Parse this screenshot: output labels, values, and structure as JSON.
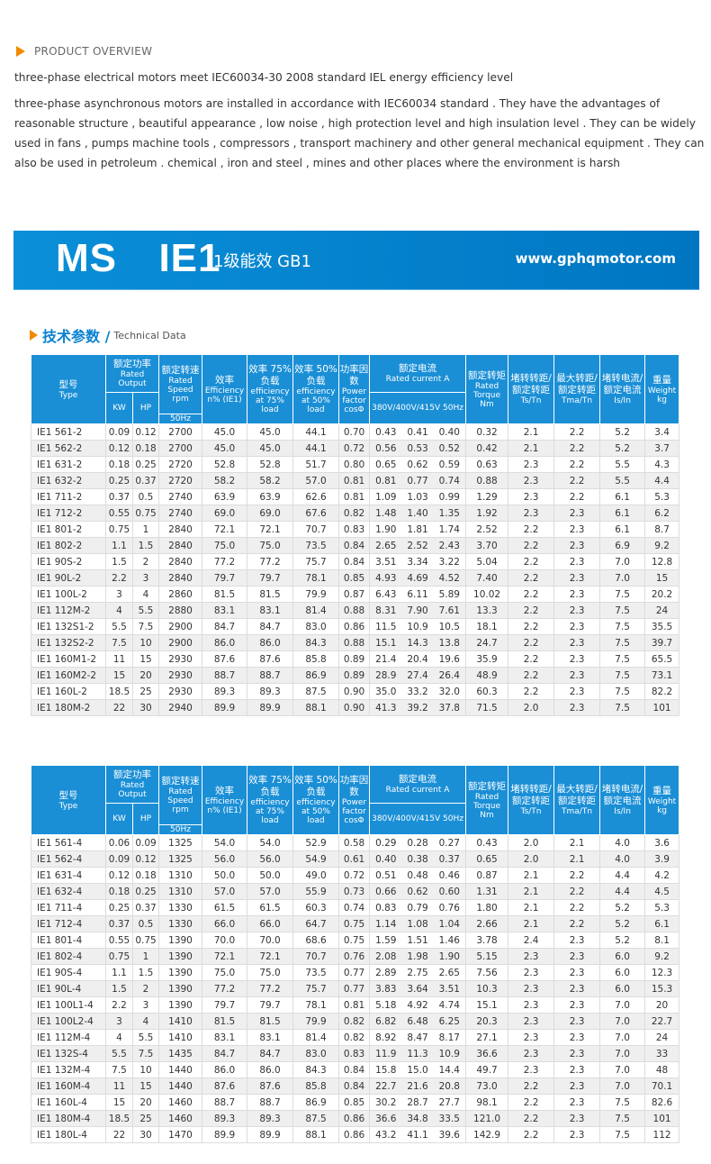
{
  "overview": {
    "title": "PRODUCT OVERVIEW",
    "line1": "three-phase electrical motors meet IEC60034-30 2008 standard IEL energy efficiency level",
    "paragraph": "three-phase asynchronous motors are installed in accordance with IEC60034 standard . They have the advantages of reasonable structure , beautiful appearance , low noise , high protection level and high insulation level . They can be widely used in fans , pumps machine tools , compressors , transport machinery and other general mechanical equipment . They can also be used in petroleum . chemical , iron and steel , mines and other places where the environment is harsh"
  },
  "banner": {
    "title": "MS  IE1",
    "subtitle": "1级能效 GB1",
    "url": "www.gphqmotor.com",
    "color": "#0a8fd8"
  },
  "section": {
    "title_cn": "技术参数 /",
    "title_en": "Technical Data"
  },
  "header": {
    "type_cn": "型号",
    "type_en": "Type",
    "output_cn": "额定功率",
    "output_en": "Rated Output",
    "kw": "KW",
    "hp": "HP",
    "speed_cn": "额定转速",
    "speed_en": "Rated Speed rpm",
    "hz": "50Hz",
    "eff_cn": "效率",
    "eff_en": "Efficiency n% (IE1)",
    "eff75_cn": "效率 75%负载",
    "eff75_en": "efficiency at 75% load",
    "eff50_cn": "效率 50%负载",
    "eff50_en": "efficiency at 50% load",
    "pf_cn": "功率因数",
    "pf_en": "Power factor cosΦ",
    "current_cn": "额定电流",
    "current_en": "Rated current A",
    "voltage": "380V/400V/415V 50Hz",
    "torque_cn": "额定转矩",
    "torque_en": "Rated Torque Nm",
    "ts_cn": "堵转转距/额定转距",
    "ts_en": "Ts/Tn",
    "tma_cn": "最大转距/额定转距",
    "tma_en": "Tma/Tn",
    "is_cn": "堵转电流/额定电流",
    "is_en": "Is/In",
    "weight_cn": "重量",
    "weight_en": "Weight kg",
    "color": "#1a8fd6"
  },
  "tables": [
    {
      "rows": [
        [
          "IE1 561-2",
          "0.09",
          "0.12",
          "2700",
          "45.0",
          "45.0",
          "44.1",
          "0.70",
          "0.43",
          "0.41",
          "0.40",
          "0.32",
          "2.1",
          "2.2",
          "5.2",
          "3.4"
        ],
        [
          "IE1 562-2",
          "0.12",
          "0.18",
          "2700",
          "45.0",
          "45.0",
          "44.1",
          "0.72",
          "0.56",
          "0.53",
          "0.52",
          "0.42",
          "2.1",
          "2.2",
          "5.2",
          "3.7"
        ],
        [
          "IE1 631-2",
          "0.18",
          "0.25",
          "2720",
          "52.8",
          "52.8",
          "51.7",
          "0.80",
          "0.65",
          "0.62",
          "0.59",
          "0.63",
          "2.3",
          "2.2",
          "5.5",
          "4.3"
        ],
        [
          "IE1 632-2",
          "0.25",
          "0.37",
          "2720",
          "58.2",
          "58.2",
          "57.0",
          "0.81",
          "0.81",
          "0.77",
          "0.74",
          "0.88",
          "2.3",
          "2.2",
          "5.5",
          "4.4"
        ],
        [
          "IE1 711-2",
          "0.37",
          "0.5",
          "2740",
          "63.9",
          "63.9",
          "62.6",
          "0.81",
          "1.09",
          "1.03",
          "0.99",
          "1.29",
          "2.3",
          "2.2",
          "6.1",
          "5.3"
        ],
        [
          "IE1 712-2",
          "0.55",
          "0.75",
          "2740",
          "69.0",
          "69.0",
          "67.6",
          "0.82",
          "1.48",
          "1.40",
          "1.35",
          "1.92",
          "2.3",
          "2.3",
          "6.1",
          "6.2"
        ],
        [
          "IE1 801-2",
          "0.75",
          "1",
          "2840",
          "72.1",
          "72.1",
          "70.7",
          "0.83",
          "1.90",
          "1.81",
          "1.74",
          "2.52",
          "2.2",
          "2.3",
          "6.1",
          "8.7"
        ],
        [
          "IE1 802-2",
          "1.1",
          "1.5",
          "2840",
          "75.0",
          "75.0",
          "73.5",
          "0.84",
          "2.65",
          "2.52",
          "2.43",
          "3.70",
          "2.2",
          "2.3",
          "6.9",
          "9.2"
        ],
        [
          "IE1 90S-2",
          "1.5",
          "2",
          "2840",
          "77.2",
          "77.2",
          "75.7",
          "0.84",
          "3.51",
          "3.34",
          "3.22",
          "5.04",
          "2.2",
          "2.3",
          "7.0",
          "12.8"
        ],
        [
          "IE1 90L-2",
          "2.2",
          "3",
          "2840",
          "79.7",
          "79.7",
          "78.1",
          "0.85",
          "4.93",
          "4.69",
          "4.52",
          "7.40",
          "2.2",
          "2.3",
          "7.0",
          "15"
        ],
        [
          "IE1 100L-2",
          "3",
          "4",
          "2860",
          "81.5",
          "81.5",
          "79.9",
          "0.87",
          "6.43",
          "6.11",
          "5.89",
          "10.02",
          "2.2",
          "2.3",
          "7.5",
          "20.2"
        ],
        [
          "IE1 112M-2",
          "4",
          "5.5",
          "2880",
          "83.1",
          "83.1",
          "81.4",
          "0.88",
          "8.31",
          "7.90",
          "7.61",
          "13.3",
          "2.2",
          "2.3",
          "7.5",
          "24"
        ],
        [
          "IE1 132S1-2",
          "5.5",
          "7.5",
          "2900",
          "84.7",
          "84.7",
          "83.0",
          "0.86",
          "11.5",
          "10.9",
          "10.5",
          "18.1",
          "2.2",
          "2.3",
          "7.5",
          "35.5"
        ],
        [
          "IE1 132S2-2",
          "7.5",
          "10",
          "2900",
          "86.0",
          "86.0",
          "84.3",
          "0.88",
          "15.1",
          "14.3",
          "13.8",
          "24.7",
          "2.2",
          "2.3",
          "7.5",
          "39.7"
        ],
        [
          "IE1 160M1-2",
          "11",
          "15",
          "2930",
          "87.6",
          "87.6",
          "85.8",
          "0.89",
          "21.4",
          "20.4",
          "19.6",
          "35.9",
          "2.2",
          "2.3",
          "7.5",
          "65.5"
        ],
        [
          "IE1 160M2-2",
          "15",
          "20",
          "2930",
          "88.7",
          "88.7",
          "86.9",
          "0.89",
          "28.9",
          "27.4",
          "26.4",
          "48.9",
          "2.2",
          "2.3",
          "7.5",
          "73.1"
        ],
        [
          "IE1 160L-2",
          "18.5",
          "25",
          "2930",
          "89.3",
          "89.3",
          "87.5",
          "0.90",
          "35.0",
          "33.2",
          "32.0",
          "60.3",
          "2.2",
          "2.3",
          "7.5",
          "82.2"
        ],
        [
          "IE1 180M-2",
          "22",
          "30",
          "2940",
          "89.9",
          "89.9",
          "88.1",
          "0.90",
          "41.3",
          "39.2",
          "37.8",
          "71.5",
          "2.0",
          "2.3",
          "7.5",
          "101"
        ]
      ]
    },
    {
      "rows": [
        [
          "IE1 561-4",
          "0.06",
          "0.09",
          "1325",
          "54.0",
          "54.0",
          "52.9",
          "0.58",
          "0.29",
          "0.28",
          "0.27",
          "0.43",
          "2.0",
          "2.1",
          "4.0",
          "3.6"
        ],
        [
          "IE1 562-4",
          "0.09",
          "0.12",
          "1325",
          "56.0",
          "56.0",
          "54.9",
          "0.61",
          "0.40",
          "0.38",
          "0.37",
          "0.65",
          "2.0",
          "2.1",
          "4.0",
          "3.9"
        ],
        [
          "IE1 631-4",
          "0.12",
          "0.18",
          "1310",
          "50.0",
          "50.0",
          "49.0",
          "0.72",
          "0.51",
          "0.48",
          "0.46",
          "0.87",
          "2.1",
          "2.2",
          "4.4",
          "4.2"
        ],
        [
          "IE1 632-4",
          "0.18",
          "0.25",
          "1310",
          "57.0",
          "57.0",
          "55.9",
          "0.73",
          "0.66",
          "0.62",
          "0.60",
          "1.31",
          "2.1",
          "2.2",
          "4.4",
          "4.5"
        ],
        [
          "IE1 711-4",
          "0.25",
          "0.37",
          "1330",
          "61.5",
          "61.5",
          "60.3",
          "0.74",
          "0.83",
          "0.79",
          "0.76",
          "1.80",
          "2.1",
          "2.2",
          "5.2",
          "5.3"
        ],
        [
          "IE1 712-4",
          "0.37",
          "0.5",
          "1330",
          "66.0",
          "66.0",
          "64.7",
          "0.75",
          "1.14",
          "1.08",
          "1.04",
          "2.66",
          "2.1",
          "2.2",
          "5.2",
          "6.1"
        ],
        [
          "IE1 801-4",
          "0.55",
          "0.75",
          "1390",
          "70.0",
          "70.0",
          "68.6",
          "0.75",
          "1.59",
          "1.51",
          "1.46",
          "3.78",
          "2.4",
          "2.3",
          "5.2",
          "8.1"
        ],
        [
          "IE1 802-4",
          "0.75",
          "1",
          "1390",
          "72.1",
          "72.1",
          "70.7",
          "0.76",
          "2.08",
          "1.98",
          "1.90",
          "5.15",
          "2.3",
          "2.3",
          "6.0",
          "9.2"
        ],
        [
          "IE1 90S-4",
          "1.1",
          "1.5",
          "1390",
          "75.0",
          "75.0",
          "73.5",
          "0.77",
          "2.89",
          "2.75",
          "2.65",
          "7.56",
          "2.3",
          "2.3",
          "6.0",
          "12.3"
        ],
        [
          "IE1 90L-4",
          "1.5",
          "2",
          "1390",
          "77.2",
          "77.2",
          "75.7",
          "0.77",
          "3.83",
          "3.64",
          "3.51",
          "10.3",
          "2.3",
          "2.3",
          "6.0",
          "15.3"
        ],
        [
          "IE1 100L1-4",
          "2.2",
          "3",
          "1390",
          "79.7",
          "79.7",
          "78.1",
          "0.81",
          "5.18",
          "4.92",
          "4.74",
          "15.1",
          "2.3",
          "2.3",
          "7.0",
          "20"
        ],
        [
          "IE1 100L2-4",
          "3",
          "4",
          "1410",
          "81.5",
          "81.5",
          "79.9",
          "0.82",
          "6.82",
          "6.48",
          "6.25",
          "20.3",
          "2.3",
          "2.3",
          "7.0",
          "22.7"
        ],
        [
          "IE1 112M-4",
          "4",
          "5.5",
          "1410",
          "83.1",
          "83.1",
          "81.4",
          "0.82",
          "8.92",
          "8.47",
          "8.17",
          "27.1",
          "2.3",
          "2.3",
          "7.0",
          "24"
        ],
        [
          "IE1 132S-4",
          "5.5",
          "7.5",
          "1435",
          "84.7",
          "84.7",
          "83.0",
          "0.83",
          "11.9",
          "11.3",
          "10.9",
          "36.6",
          "2.3",
          "2.3",
          "7.0",
          "33"
        ],
        [
          "IE1 132M-4",
          "7.5",
          "10",
          "1440",
          "86.0",
          "86.0",
          "84.3",
          "0.84",
          "15.8",
          "15.0",
          "14.4",
          "49.7",
          "2.3",
          "2.3",
          "7.0",
          "48"
        ],
        [
          "IE1 160M-4",
          "11",
          "15",
          "1440",
          "87.6",
          "87.6",
          "85.8",
          "0.84",
          "22.7",
          "21.6",
          "20.8",
          "73.0",
          "2.2",
          "2.3",
          "7.0",
          "70.1"
        ],
        [
          "IE1 160L-4",
          "15",
          "20",
          "1460",
          "88.7",
          "88.7",
          "86.9",
          "0.85",
          "30.2",
          "28.7",
          "27.7",
          "98.1",
          "2.2",
          "2.3",
          "7.5",
          "82.6"
        ],
        [
          "IE1 180M-4",
          "18.5",
          "25",
          "1460",
          "89.3",
          "89.3",
          "87.5",
          "0.86",
          "36.6",
          "34.8",
          "33.5",
          "121.0",
          "2.2",
          "2.3",
          "7.5",
          "101"
        ],
        [
          "IE1 180L-4",
          "22",
          "30",
          "1470",
          "89.9",
          "89.9",
          "88.1",
          "0.86",
          "43.2",
          "41.1",
          "39.6",
          "142.9",
          "2.2",
          "2.3",
          "7.5",
          "112"
        ]
      ]
    }
  ]
}
